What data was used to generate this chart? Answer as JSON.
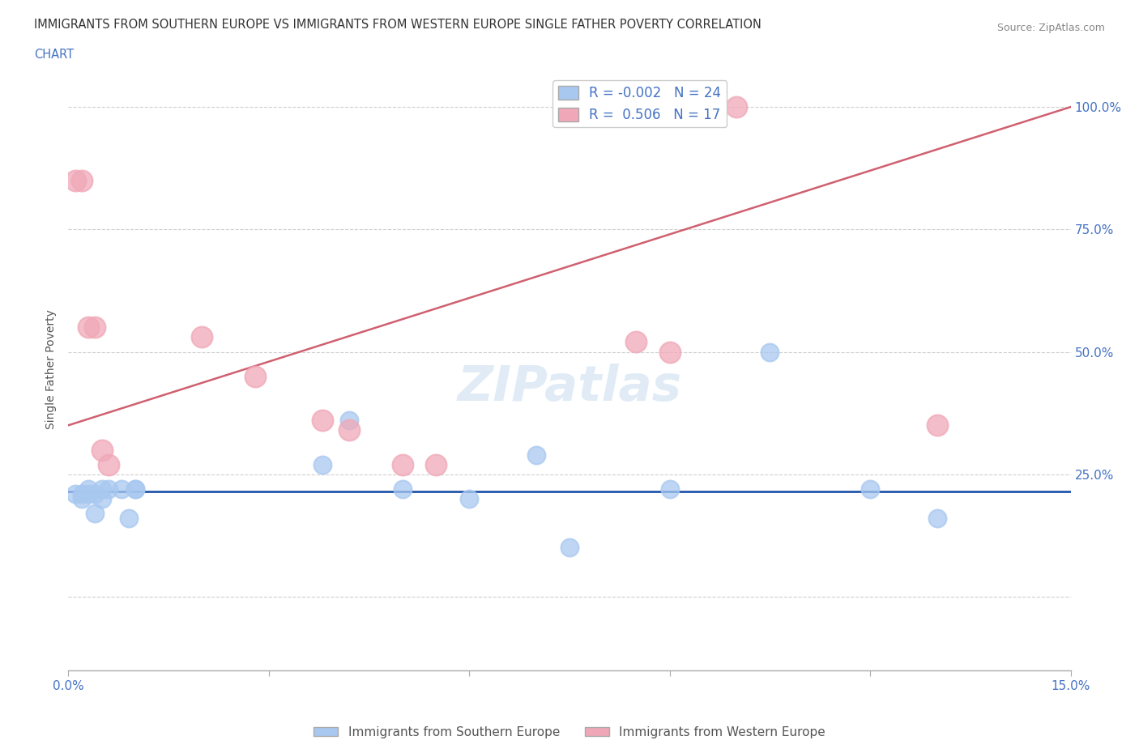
{
  "title_line1": "IMMIGRANTS FROM SOUTHERN EUROPE VS IMMIGRANTS FROM WESTERN EUROPE SINGLE FATHER POVERTY CORRELATION",
  "title_line2": "CHART",
  "source": "Source: ZipAtlas.com",
  "blue_label": "Immigrants from Southern Europe",
  "pink_label": "Immigrants from Western Europe",
  "blue_R": -0.002,
  "blue_N": 24,
  "pink_R": 0.506,
  "pink_N": 17,
  "blue_color": "#A8C8F0",
  "pink_color": "#F0A8B8",
  "blue_line_color": "#2255AA",
  "pink_line_color": "#D06070",
  "xlim": [
    0.0,
    0.15
  ],
  "ylim": [
    -0.15,
    1.08
  ],
  "ytick_vals": [
    0.0,
    0.25,
    0.5,
    0.75,
    1.0
  ],
  "ytick_labels": [
    "",
    "25.0%",
    "50.0%",
    "75.0%",
    "100.0%"
  ],
  "xtick_vals": [
    0.0,
    0.03,
    0.06,
    0.09,
    0.12,
    0.15
  ],
  "xtick_labels": [
    "0.0%",
    "",
    "",
    "",
    "",
    "15.0%"
  ],
  "blue_x": [
    0.001,
    0.002,
    0.002,
    0.003,
    0.003,
    0.004,
    0.004,
    0.005,
    0.005,
    0.006,
    0.008,
    0.009,
    0.01,
    0.01,
    0.038,
    0.042,
    0.05,
    0.06,
    0.07,
    0.075,
    0.09,
    0.105,
    0.12,
    0.13
  ],
  "blue_y": [
    0.21,
    0.21,
    0.2,
    0.22,
    0.21,
    0.21,
    0.17,
    0.22,
    0.2,
    0.22,
    0.22,
    0.16,
    0.22,
    0.22,
    0.27,
    0.36,
    0.22,
    0.2,
    0.29,
    0.1,
    0.22,
    0.5,
    0.22,
    0.16
  ],
  "pink_x": [
    0.001,
    0.002,
    0.003,
    0.004,
    0.005,
    0.006,
    0.02,
    0.028,
    0.038,
    0.042,
    0.05,
    0.055,
    0.085,
    0.09,
    0.095,
    0.1,
    0.13
  ],
  "pink_y": [
    0.85,
    0.85,
    0.55,
    0.55,
    0.3,
    0.27,
    0.53,
    0.45,
    0.36,
    0.34,
    0.27,
    0.27,
    0.52,
    0.5,
    1.0,
    1.0,
    0.35
  ],
  "blue_scatter_size": 250,
  "pink_scatter_size": 350,
  "background_color": "#FFFFFF",
  "grid_color": "#BBBBBB",
  "pink_trend_y0": 0.35,
  "pink_trend_y1": 1.0,
  "blue_trend_y0": 0.215,
  "blue_trend_y1": 0.215
}
